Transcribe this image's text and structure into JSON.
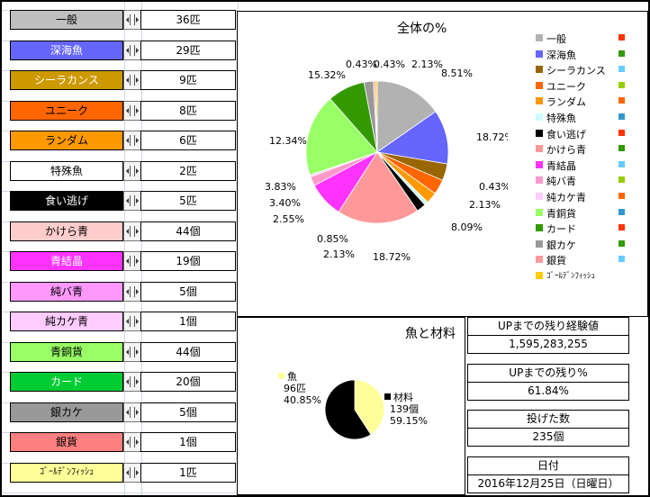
{
  "items": [
    {
      "label": "一般",
      "value": "36匹",
      "color": "#c0c0c0",
      "text_color": "#000000"
    },
    {
      "label": "深海魚",
      "value": "29匹",
      "color": "#6666ff",
      "text_color": "#ffffff"
    },
    {
      "label": "シーラカンス",
      "value": "9匹",
      "color": "#cc9900",
      "text_color": "#ffffff"
    },
    {
      "label": "ユニーク",
      "value": "8匹",
      "color": "#ff6600",
      "text_color": "#000000"
    },
    {
      "label": "ランダム",
      "value": "6匹",
      "color": "#ff9900",
      "text_color": "#000000"
    },
    {
      "label": "特殊魚",
      "value": "2匹",
      "color": "#ffffff",
      "text_color": "#000000"
    },
    {
      "label": "食い逃げ",
      "value": "5匹",
      "color": "#000000",
      "text_color": "#ffffff"
    },
    {
      "label": "かけら青",
      "value": "44個",
      "color": "#ffcccc",
      "text_color": "#000000"
    },
    {
      "label": "青結晶",
      "value": "19個",
      "color": "#ff33ff",
      "text_color": "#ffffff"
    },
    {
      "label": "純バ青",
      "value": "5個",
      "color": "#ff99ff",
      "text_color": "#000000"
    },
    {
      "label": "純カケ青",
      "value": "1個",
      "color": "#ffccff",
      "text_color": "#000000"
    },
    {
      "label": "青銅貨",
      "value": "44個",
      "color": "#99ff66",
      "text_color": "#000000"
    },
    {
      "label": "カード",
      "value": "20個",
      "color": "#00cc33",
      "text_color": "#ffffff"
    },
    {
      "label": "銀カケ",
      "value": "5個",
      "color": "#999999",
      "text_color": "#000000"
    },
    {
      "label": "銀貨",
      "value": "1個",
      "color": "#ff8080",
      "text_color": "#000000"
    },
    {
      "label": "ｺﾞｰﾙﾃﾞﾝﾌｨｯｼｭ",
      "value": "1匹",
      "color": "#ffff99",
      "text_color": "#000000"
    }
  ],
  "chart_data": [
    {
      "type": "pie",
      "title": "全体の%",
      "slices": [
        {
          "name": "一般",
          "value": 15.32,
          "label": "15.32%",
          "color": "#b2b2b2"
        },
        {
          "name": "深海魚",
          "value": 12.34,
          "label": "12.34%",
          "color": "#6666ff"
        },
        {
          "name": "シーラカンス",
          "value": 3.83,
          "label": "3.83%",
          "color": "#996600"
        },
        {
          "name": "ユニーク",
          "value": 3.4,
          "label": "3.40%",
          "color": "#ff6600"
        },
        {
          "name": "ランダム",
          "value": 2.55,
          "label": "2.55%",
          "color": "#ff9900"
        },
        {
          "name": "特殊魚",
          "value": 0.85,
          "label": "0.85%",
          "color": "#ccffff"
        },
        {
          "name": "食い逃げ",
          "value": 2.13,
          "label": "2.13%",
          "color": "#000000"
        },
        {
          "name": "かけら青",
          "value": 18.72,
          "label": "18.72%",
          "color": "#ff9999"
        },
        {
          "name": "青結晶",
          "value": 8.09,
          "label": "8.09%",
          "color": "#ff33ff"
        },
        {
          "name": "純バ青",
          "value": 2.13,
          "label": "2.13%",
          "color": "#ff99cc"
        },
        {
          "name": "純カケ青",
          "value": 0.43,
          "label": "0.43%",
          "color": "#ffccff"
        },
        {
          "name": "青銅貨",
          "value": 18.72,
          "label": "18.72%",
          "color": "#99ff66"
        },
        {
          "name": "カード",
          "value": 8.51,
          "label": "8.51%",
          "color": "#339900"
        },
        {
          "name": "銀カケ",
          "value": 2.13,
          "label": "2.13%",
          "color": "#999999"
        },
        {
          "name": "銀貨",
          "value": 0.43,
          "label": "0.43%",
          "color": "#ff9999"
        },
        {
          "name": "ｺﾞｰﾙﾃﾞﾝﾌｨｯｼｭ",
          "value": 0.43,
          "label": "0.43%",
          "color": "#ffcc00"
        }
      ],
      "legend_position": "right",
      "legend_marker_colors": [
        "#ff3300",
        "#339900",
        "#66ccff",
        "#99cc00",
        "#ff6600",
        "#3399cc",
        "#ff3300",
        "#339900",
        "#66ccff",
        "#99cc00",
        "#ff6600",
        "#3399cc",
        "#ff3300",
        "#339900",
        "#66ccff"
      ]
    },
    {
      "type": "pie",
      "title": "魚と材料",
      "slices": [
        {
          "name": "魚",
          "value": 40.85,
          "label_lines": [
            "魚",
            "96匹",
            "40.85%"
          ],
          "color": "#ffff99"
        },
        {
          "name": "材料",
          "value": 59.15,
          "label_lines": [
            "材料",
            "139個",
            "59.15%"
          ],
          "color": "#000000"
        }
      ]
    }
  ],
  "stats": [
    {
      "label": "UPまでの残り経験値",
      "value": "1,595,283,255"
    },
    {
      "label": "UPまでの残り%",
      "value": "61.84%"
    },
    {
      "label": "投げた数",
      "value": "235個"
    },
    {
      "label": "日付",
      "value": "2016年12月25日（日曜日）"
    }
  ]
}
